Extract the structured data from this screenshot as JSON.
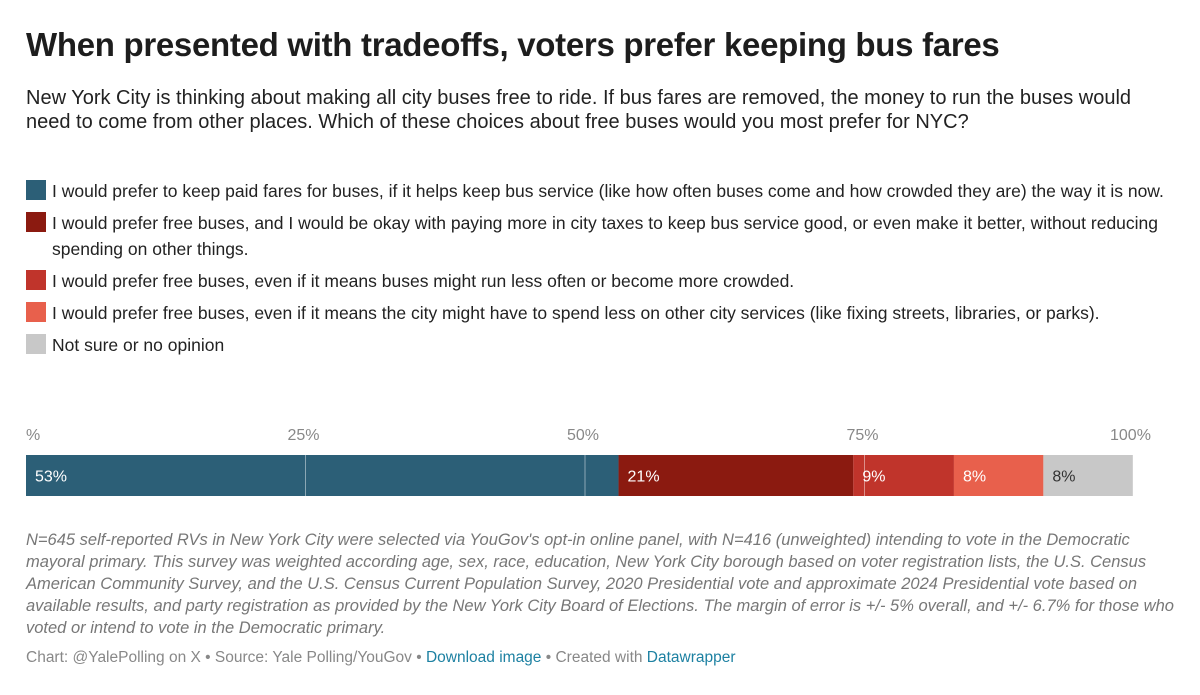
{
  "title": "When presented with tradeoffs, voters prefer keeping bus fares",
  "subtitle": "New York City is thinking about making all city buses free to ride. If bus fares are removed, the money to run the buses would need to come from other places. Which of these choices about free buses would you most prefer for NYC?",
  "legend": [
    {
      "label": "I would prefer to keep paid fares for buses, if it helps keep bus service (like how often buses come and how crowded they are) the way it is now.",
      "color": "#2c5f77"
    },
    {
      "label": "I would prefer free buses, and I would be okay with paying more in city taxes to keep bus service good, or even make it better, without reducing spending on other things.",
      "color": "#8b1a10"
    },
    {
      "label": "I would prefer free buses, even if it means buses might run less often or become more crowded.",
      "color": "#c0342b"
    },
    {
      "label": "I would prefer free buses, even if it means the city might have to spend less on other city services (like fixing streets, libraries, or parks).",
      "color": "#e8604c"
    },
    {
      "label": "Not sure or no opinion",
      "color": "#c8c8c8"
    }
  ],
  "chart_data": {
    "type": "bar",
    "orientation": "horizontal-stacked",
    "axis_ticks": [
      "%",
      "25%",
      "50%",
      "75%",
      "100%"
    ],
    "xlim": [
      0,
      100
    ],
    "grid": true,
    "series": [
      {
        "name": "I would prefer to keep paid fares for buses, if it helps keep bus service (like how often buses come and how crowded they are) the way it is now.",
        "value": 53,
        "label": "53%",
        "color": "#2c5f77",
        "text_color": "#ffffff"
      },
      {
        "name": "I would prefer free buses, and I would be okay with paying more in city taxes to keep bus service good, or even make it better, without reducing spending on other things.",
        "value": 21,
        "label": "21%",
        "color": "#8b1a10",
        "text_color": "#ffffff"
      },
      {
        "name": "I would prefer free buses, even if it means buses might run less often or become more crowded.",
        "value": 9,
        "label": "9%",
        "color": "#c0342b",
        "text_color": "#ffffff"
      },
      {
        "name": "I would prefer free buses, even if it means the city might have to spend less on other city services (like fixing streets, libraries, or parks).",
        "value": 8,
        "label": "8%",
        "color": "#e8604c",
        "text_color": "#ffffff"
      },
      {
        "name": "Not sure or no opinion",
        "value": 8,
        "label": "8%",
        "color": "#c8c8c8",
        "text_color": "#333333"
      }
    ]
  },
  "notes": "N=645 self-reported RVs in New York City were selected via YouGov's opt-in online panel, with N=416 (unweighted) intending to vote in the Democratic mayoral primary. This survey was weighted according age, sex, race, education, New York City borough based on voter registration lists, the U.S. Census American Community Survey, and the U.S. Census Current Population Survey, 2020 Presidential vote and approximate 2024 Presidential vote based on available results, and party registration as provided by the New York City Board of Elections. The margin of error is +/- 5% overall, and +/- 6.7% for those who voted or intend to vote in the Democratic primary.",
  "footer": {
    "prefix": "Chart: @YalePolling on X • Source: Yale Polling/YouGov • ",
    "download": "Download image",
    "middle": " • Created with ",
    "datawrapper": "Datawrapper"
  }
}
